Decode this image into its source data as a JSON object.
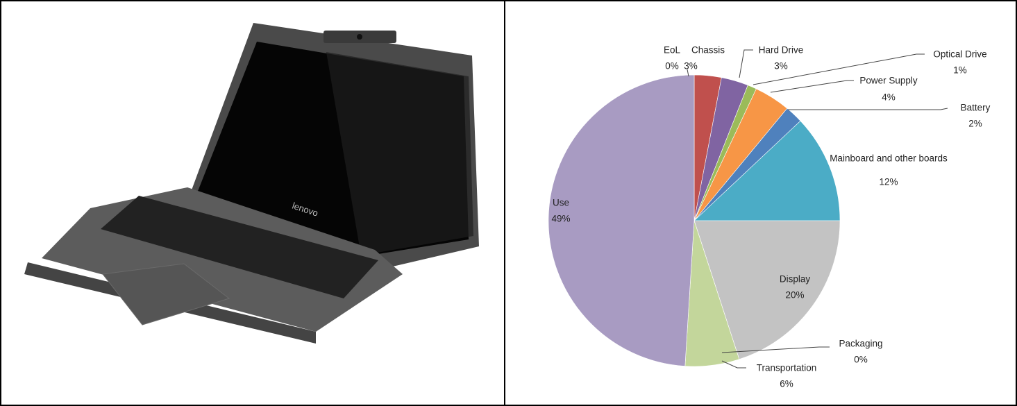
{
  "chart_data": {
    "type": "pie",
    "categories": [
      "EoL",
      "Chassis",
      "Hard Drive",
      "Optical Drive",
      "Power Supply",
      "Battery",
      "Mainboard and other boards",
      "Display",
      "Packaging",
      "Transportation",
      "Use"
    ],
    "values": [
      0,
      3,
      3,
      1,
      4,
      2,
      12,
      20,
      0,
      6,
      49
    ],
    "value_labels": [
      "0%",
      "3%",
      "3%",
      "1%",
      "4%",
      "2%",
      "12%",
      "20%",
      "0%",
      "6%",
      "49%"
    ],
    "colors": [
      "#9dc3d6",
      "#c0504d",
      "#8064a2",
      "#9bbb59",
      "#f79646",
      "#4f81bd",
      "#4bacc6",
      "#c3c3c3",
      "#00b050",
      "#c3d69b",
      "#a89bc2"
    ]
  }
}
